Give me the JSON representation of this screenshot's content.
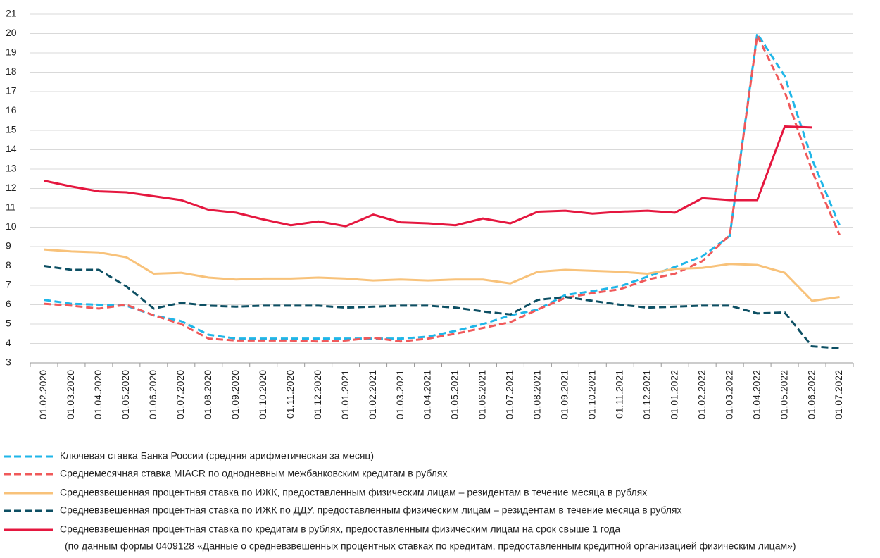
{
  "chart_data": {
    "type": "line",
    "categories": [
      "01.02.2020",
      "01.03.2020",
      "01.04.2020",
      "01.05.2020",
      "01.06.2020",
      "01.07.2020",
      "01.08.2020",
      "01.09.2020",
      "01.10.2020",
      "01.11.2020",
      "01.12.2020",
      "01.01.2021",
      "01.02.2021",
      "01.03.2021",
      "01.04.2021",
      "01.05.2021",
      "01.06.2021",
      "01.07.2021",
      "01.08.2021",
      "01.09.2021",
      "01.10.2021",
      "01.11.2021",
      "01.12.2021",
      "01.01.2022",
      "01.02.2022",
      "01.03.2022",
      "01.04.2022",
      "01.05.2022",
      "01.06.2022",
      "01.07.2022"
    ],
    "series": [
      {
        "name": "Ключевая ставка Банка России (средняя арифметическая за месяц)",
        "color": "#1fb6e8",
        "dashed": true,
        "values": [
          6.25,
          6.05,
          6.0,
          5.95,
          5.45,
          5.15,
          4.45,
          4.25,
          4.25,
          4.25,
          4.25,
          4.25,
          4.25,
          4.25,
          4.35,
          4.65,
          5.0,
          5.45,
          5.75,
          6.5,
          6.7,
          6.95,
          7.45,
          7.95,
          8.5,
          9.55,
          20.0,
          17.8,
          13.5,
          10.1
        ]
      },
      {
        "name": "Среднемесячная ставка MIACR по однодневным межбанковским кредитам в рублях",
        "color": "#f0595a",
        "dashed": true,
        "values": [
          6.05,
          5.95,
          5.8,
          6.0,
          5.45,
          5.0,
          4.25,
          4.15,
          4.15,
          4.15,
          4.1,
          4.15,
          4.3,
          4.1,
          4.25,
          4.5,
          4.8,
          5.1,
          5.75,
          6.35,
          6.6,
          6.8,
          7.3,
          7.6,
          8.25,
          9.6,
          19.9,
          17.0,
          12.9,
          9.6
        ]
      },
      {
        "name": "Средневзвешенная процентная ставка по ИЖК, предоставленным физическим лицам – резидентам в течение месяца в рублях",
        "color": "#f8c27a",
        "dashed": false,
        "values": [
          8.85,
          8.75,
          8.7,
          8.45,
          7.6,
          7.65,
          7.4,
          7.3,
          7.35,
          7.35,
          7.4,
          7.35,
          7.25,
          7.3,
          7.25,
          7.3,
          7.3,
          7.1,
          7.7,
          7.8,
          7.75,
          7.7,
          7.6,
          7.85,
          7.9,
          8.1,
          8.05,
          7.65,
          6.2,
          6.4
        ]
      },
      {
        "name": "Средневзвешенная процентная ставка по ИЖК по ДДУ, предоставленным физическим лицам – резидентам в течение месяца в рублях",
        "color": "#0d4f63",
        "dashed": true,
        "values": [
          8.0,
          7.8,
          7.8,
          6.95,
          5.8,
          6.1,
          5.95,
          5.9,
          5.95,
          5.95,
          5.95,
          5.85,
          5.9,
          5.95,
          5.95,
          5.85,
          5.65,
          5.5,
          6.25,
          6.4,
          6.2,
          6.0,
          5.85,
          5.9,
          5.95,
          5.95,
          5.55,
          5.6,
          3.85,
          3.75
        ]
      },
      {
        "name": "Средневзвешенная процентная ставка по кредитам в рублях, предоставленным физическим лицам на срок свыше 1 года",
        "color": "#e5173f",
        "dashed": false,
        "values": [
          12.4,
          12.1,
          11.85,
          11.8,
          11.6,
          11.4,
          10.9,
          10.75,
          10.4,
          10.1,
          10.3,
          10.05,
          10.65,
          10.25,
          10.2,
          10.1,
          10.45,
          10.2,
          10.8,
          10.85,
          10.7,
          10.8,
          10.85,
          10.75,
          11.5,
          11.4,
          11.4,
          15.2,
          15.15,
          null
        ]
      }
    ],
    "legend_note": "(по данным формы 0409128 «Данные о средневзвешенных процентных ставках по кредитам, предоставленным кредитной организацией физическим лицам»)",
    "ylim": [
      3,
      21
    ],
    "yticks": [
      3,
      4,
      5,
      6,
      7,
      8,
      9,
      10,
      11,
      12,
      13,
      14,
      15,
      16,
      17,
      18,
      19,
      20,
      21
    ],
    "grid": true
  }
}
